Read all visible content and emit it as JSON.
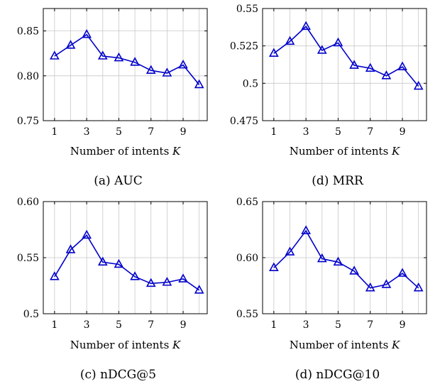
{
  "chart_data": [
    {
      "type": "line",
      "caption": "(a) AUC",
      "xlabel": "Number of intents K",
      "x": [
        1,
        2,
        3,
        4,
        5,
        6,
        7,
        8,
        9,
        10
      ],
      "xticks": [
        1,
        3,
        5,
        7,
        9
      ],
      "xtick_labels": [
        "1",
        "3",
        "5",
        "7",
        "9"
      ],
      "xlim": [
        0.3,
        10.5
      ],
      "ylim": [
        0.75,
        0.875
      ],
      "yticks": [
        0.75,
        0.8,
        0.85
      ],
      "ytick_labels": [
        "0.75",
        "0.80",
        "0.85"
      ],
      "grid": true,
      "series": [
        {
          "values": [
            0.822,
            0.834,
            0.846,
            0.822,
            0.82,
            0.815,
            0.806,
            0.803,
            0.812,
            0.79
          ],
          "color": "#0000cc",
          "marker": "triangle"
        }
      ]
    },
    {
      "type": "line",
      "caption": "(d) MRR",
      "xlabel": "Number of intents K",
      "x": [
        1,
        2,
        3,
        4,
        5,
        6,
        7,
        8,
        9,
        10
      ],
      "xticks": [
        1,
        3,
        5,
        7,
        9
      ],
      "xtick_labels": [
        "1",
        "3",
        "5",
        "7",
        "9"
      ],
      "xlim": [
        0.3,
        10.5
      ],
      "ylim": [
        0.475,
        0.55
      ],
      "yticks": [
        0.475,
        0.5,
        0.525,
        0.55
      ],
      "ytick_labels": [
        "0.475",
        "0.5",
        "0.525",
        "0.55"
      ],
      "grid": true,
      "series": [
        {
          "values": [
            0.52,
            0.528,
            0.538,
            0.522,
            0.527,
            0.512,
            0.51,
            0.505,
            0.511,
            0.498
          ],
          "color": "#0000cc",
          "marker": "triangle"
        }
      ]
    },
    {
      "type": "line",
      "caption": "(c) nDCG@5",
      "xlabel": "Number of intents K",
      "x": [
        1,
        2,
        3,
        4,
        5,
        6,
        7,
        8,
        9,
        10
      ],
      "xticks": [
        1,
        3,
        5,
        7,
        9
      ],
      "xtick_labels": [
        "1",
        "3",
        "5",
        "7",
        "9"
      ],
      "xlim": [
        0.3,
        10.5
      ],
      "ylim": [
        0.5,
        0.6
      ],
      "yticks": [
        0.5,
        0.55,
        0.6
      ],
      "ytick_labels": [
        "0.5",
        "0.55",
        "0.60"
      ],
      "grid": true,
      "series": [
        {
          "values": [
            0.533,
            0.557,
            0.57,
            0.546,
            0.544,
            0.533,
            0.527,
            0.528,
            0.531,
            0.521
          ],
          "color": "#0000cc",
          "marker": "triangle"
        }
      ]
    },
    {
      "type": "line",
      "caption": "(d) nDCG@10",
      "xlabel": "Number of intents K",
      "x": [
        1,
        2,
        3,
        4,
        5,
        6,
        7,
        8,
        9,
        10
      ],
      "xticks": [
        1,
        3,
        5,
        7,
        9
      ],
      "xtick_labels": [
        "1",
        "3",
        "5",
        "7",
        "9"
      ],
      "xlim": [
        0.3,
        10.5
      ],
      "ylim": [
        0.55,
        0.65
      ],
      "yticks": [
        0.55,
        0.6,
        0.65
      ],
      "ytick_labels": [
        "0.55",
        "0.60",
        "0.65"
      ],
      "grid": true,
      "series": [
        {
          "values": [
            0.591,
            0.605,
            0.624,
            0.599,
            0.596,
            0.588,
            0.573,
            0.576,
            0.586,
            0.573
          ],
          "color": "#0000cc",
          "marker": "triangle"
        }
      ]
    }
  ]
}
